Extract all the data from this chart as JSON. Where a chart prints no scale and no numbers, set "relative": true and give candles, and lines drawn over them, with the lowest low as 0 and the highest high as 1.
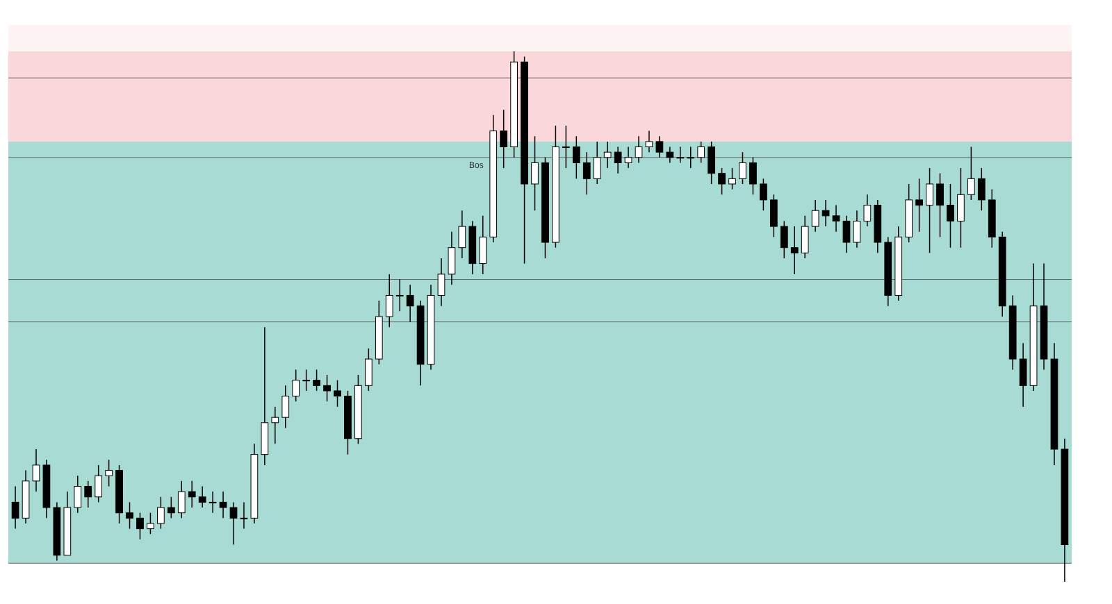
{
  "chart_data": {
    "type": "candlestick",
    "relative": true,
    "categories": [
      null,
      null,
      null,
      null,
      null,
      null,
      null,
      null,
      null,
      null,
      null,
      null,
      null,
      null,
      null,
      null,
      null,
      null,
      null,
      null,
      null,
      null,
      null,
      null,
      null,
      null,
      null,
      null,
      null,
      null,
      null,
      null,
      null,
      null,
      null,
      null,
      null,
      null,
      null,
      null,
      null,
      null,
      null,
      null,
      null,
      null,
      null,
      null,
      null,
      null,
      null,
      null,
      null,
      null,
      null,
      null,
      null,
      null,
      null,
      null,
      null,
      null,
      null,
      null,
      null,
      null,
      null,
      null,
      null,
      null,
      null,
      null,
      null,
      null,
      null,
      null,
      null,
      null,
      null,
      null,
      null,
      null,
      null,
      null,
      null,
      null,
      null,
      null,
      null,
      null,
      null,
      null,
      null,
      null,
      null,
      null,
      null,
      null,
      null,
      null,
      null,
      null
    ],
    "ohlc": [
      [
        0.15,
        0.18,
        0.1,
        0.12
      ],
      [
        0.12,
        0.21,
        0.11,
        0.19
      ],
      [
        0.19,
        0.25,
        0.17,
        0.22
      ],
      [
        0.22,
        0.23,
        0.12,
        0.14
      ],
      [
        0.14,
        0.15,
        0.04,
        0.05
      ],
      [
        0.05,
        0.17,
        0.05,
        0.14
      ],
      [
        0.14,
        0.2,
        0.13,
        0.18
      ],
      [
        0.18,
        0.19,
        0.14,
        0.16
      ],
      [
        0.16,
        0.22,
        0.15,
        0.2
      ],
      [
        0.2,
        0.23,
        0.18,
        0.21
      ],
      [
        0.21,
        0.22,
        0.11,
        0.13
      ],
      [
        0.13,
        0.15,
        0.1,
        0.12
      ],
      [
        0.12,
        0.13,
        0.08,
        0.1
      ],
      [
        0.1,
        0.13,
        0.09,
        0.11
      ],
      [
        0.11,
        0.16,
        0.1,
        0.14
      ],
      [
        0.14,
        0.16,
        0.12,
        0.13
      ],
      [
        0.13,
        0.19,
        0.12,
        0.17
      ],
      [
        0.17,
        0.19,
        0.14,
        0.16
      ],
      [
        0.16,
        0.18,
        0.14,
        0.15
      ],
      [
        0.15,
        0.17,
        0.13,
        0.15
      ],
      [
        0.15,
        0.17,
        0.12,
        0.14
      ],
      [
        0.14,
        0.15,
        0.07,
        0.12
      ],
      [
        0.12,
        0.15,
        0.1,
        0.12
      ],
      [
        0.12,
        0.26,
        0.11,
        0.24
      ],
      [
        0.24,
        0.48,
        0.22,
        0.3
      ],
      [
        0.3,
        0.33,
        0.26,
        0.31
      ],
      [
        0.31,
        0.37,
        0.29,
        0.35
      ],
      [
        0.35,
        0.4,
        0.34,
        0.38
      ],
      [
        0.38,
        0.4,
        0.36,
        0.38
      ],
      [
        0.38,
        0.4,
        0.36,
        0.37
      ],
      [
        0.37,
        0.39,
        0.34,
        0.36
      ],
      [
        0.36,
        0.38,
        0.33,
        0.35
      ],
      [
        0.35,
        0.36,
        0.24,
        0.27
      ],
      [
        0.27,
        0.39,
        0.26,
        0.37
      ],
      [
        0.37,
        0.44,
        0.36,
        0.42
      ],
      [
        0.42,
        0.53,
        0.41,
        0.5
      ],
      [
        0.5,
        0.58,
        0.48,
        0.54
      ],
      [
        0.54,
        0.57,
        0.51,
        0.54
      ],
      [
        0.54,
        0.56,
        0.49,
        0.52
      ],
      [
        0.52,
        0.53,
        0.37,
        0.41
      ],
      [
        0.41,
        0.56,
        0.4,
        0.54
      ],
      [
        0.54,
        0.61,
        0.52,
        0.58
      ],
      [
        0.58,
        0.66,
        0.56,
        0.63
      ],
      [
        0.63,
        0.7,
        0.61,
        0.67
      ],
      [
        0.67,
        0.68,
        0.58,
        0.6
      ],
      [
        0.6,
        0.69,
        0.58,
        0.65
      ],
      [
        0.65,
        0.88,
        0.64,
        0.85
      ],
      [
        0.85,
        0.89,
        0.78,
        0.82
      ],
      [
        0.82,
        1,
        0.8,
        0.98
      ],
      [
        0.98,
        0.99,
        0.6,
        0.75
      ],
      [
        0.75,
        0.84,
        0.7,
        0.79
      ],
      [
        0.79,
        0.8,
        0.61,
        0.64
      ],
      [
        0.64,
        0.86,
        0.63,
        0.82
      ],
      [
        0.82,
        0.86,
        0.78,
        0.82
      ],
      [
        0.82,
        0.84,
        0.76,
        0.79
      ],
      [
        0.79,
        0.81,
        0.73,
        0.76
      ],
      [
        0.76,
        0.83,
        0.75,
        0.8
      ],
      [
        0.8,
        0.83,
        0.78,
        0.81
      ],
      [
        0.81,
        0.82,
        0.77,
        0.79
      ],
      [
        0.79,
        0.82,
        0.78,
        0.8
      ],
      [
        0.8,
        0.84,
        0.79,
        0.82
      ],
      [
        0.82,
        0.85,
        0.81,
        0.83
      ],
      [
        0.83,
        0.84,
        0.8,
        0.81
      ],
      [
        0.81,
        0.82,
        0.79,
        0.8
      ],
      [
        0.8,
        0.82,
        0.79,
        0.8
      ],
      [
        0.8,
        0.82,
        0.78,
        0.8
      ],
      [
        0.8,
        0.83,
        0.79,
        0.82
      ],
      [
        0.82,
        0.83,
        0.75,
        0.77
      ],
      [
        0.77,
        0.78,
        0.73,
        0.75
      ],
      [
        0.75,
        0.78,
        0.74,
        0.76
      ],
      [
        0.76,
        0.81,
        0.75,
        0.79
      ],
      [
        0.79,
        0.8,
        0.73,
        0.75
      ],
      [
        0.75,
        0.76,
        0.7,
        0.72
      ],
      [
        0.72,
        0.73,
        0.65,
        0.67
      ],
      [
        0.67,
        0.68,
        0.61,
        0.63
      ],
      [
        0.63,
        0.67,
        0.58,
        0.62
      ],
      [
        0.62,
        0.69,
        0.61,
        0.67
      ],
      [
        0.67,
        0.72,
        0.66,
        0.7
      ],
      [
        0.7,
        0.72,
        0.67,
        0.69
      ],
      [
        0.69,
        0.71,
        0.66,
        0.68
      ],
      [
        0.68,
        0.69,
        0.62,
        0.64
      ],
      [
        0.64,
        0.7,
        0.63,
        0.68
      ],
      [
        0.68,
        0.73,
        0.67,
        0.71
      ],
      [
        0.71,
        0.72,
        0.62,
        0.64
      ],
      [
        0.64,
        0.65,
        0.52,
        0.54
      ],
      [
        0.54,
        0.67,
        0.53,
        0.65
      ],
      [
        0.65,
        0.75,
        0.64,
        0.72
      ],
      [
        0.72,
        0.76,
        0.66,
        0.71
      ],
      [
        0.71,
        0.78,
        0.62,
        0.75
      ],
      [
        0.75,
        0.77,
        0.65,
        0.71
      ],
      [
        0.71,
        0.75,
        0.63,
        0.68
      ],
      [
        0.68,
        0.78,
        0.63,
        0.73
      ],
      [
        0.73,
        0.82,
        0.72,
        0.76
      ],
      [
        0.76,
        0.78,
        0.7,
        0.72
      ],
      [
        0.72,
        0.74,
        0.63,
        0.65
      ],
      [
        0.65,
        0.66,
        0.5,
        0.52
      ],
      [
        0.52,
        0.54,
        0.4,
        0.42
      ],
      [
        0.42,
        0.45,
        0.33,
        0.37
      ],
      [
        0.37,
        0.6,
        0.36,
        0.52
      ],
      [
        0.52,
        0.6,
        0.4,
        0.42
      ],
      [
        0.42,
        0.45,
        0.22,
        0.25
      ],
      [
        0.25,
        0.27,
        0,
        0.07
      ]
    ],
    "bands": [
      {
        "axis": "y",
        "from": 0.81,
        "to": 1.05,
        "color": "#fef4f4"
      },
      {
        "axis": "y",
        "from": 0.035,
        "to": 0.83,
        "color": "#a8dbd3"
      },
      {
        "axis": "y",
        "from": 0.83,
        "to": 1,
        "color": "#f9d7da"
      }
    ],
    "ref_lines": [
      {
        "axis": "y",
        "value": 0.57,
        "color": "#666666"
      },
      {
        "axis": "y",
        "value": 0.49,
        "color": "#666666"
      },
      {
        "axis": "y",
        "value": 0.035,
        "color": "#666666"
      },
      {
        "axis": "y",
        "value": 0.95,
        "color": "#666666"
      },
      {
        "axis": "y",
        "value": 0.8,
        "color": "#666666"
      }
    ],
    "annotations": [
      "Bos"
    ]
  }
}
